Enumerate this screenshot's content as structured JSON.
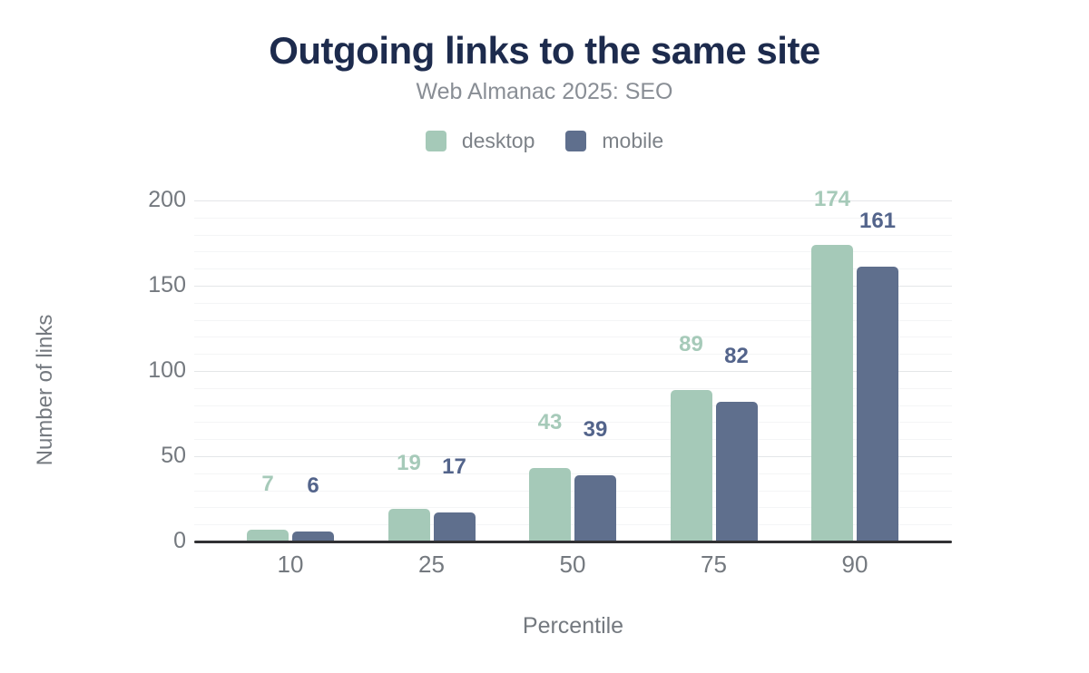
{
  "title": "Outgoing links to the same site",
  "subtitle": "Web Almanac 2025: SEO",
  "legend": [
    {
      "label": "desktop",
      "color": "#a5c9b8"
    },
    {
      "label": "mobile",
      "color": "#5f6f8d"
    }
  ],
  "chart_data": {
    "type": "bar",
    "title": "Outgoing links to the same site",
    "subtitle": "Web Almanac 2025: SEO",
    "categories": [
      "10",
      "25",
      "50",
      "75",
      "90"
    ],
    "series": [
      {
        "name": "desktop",
        "values": [
          7,
          19,
          43,
          89,
          174
        ],
        "color": "#a5c9b8",
        "label_color": "#a6cab9"
      },
      {
        "name": "mobile",
        "values": [
          6,
          17,
          39,
          82,
          161
        ],
        "color": "#5f6f8d",
        "label_color": "#53648b"
      }
    ],
    "xlabel": "Percentile",
    "ylabel": "Number of links",
    "ylim": [
      0,
      200
    ],
    "yticks": [
      0,
      50,
      100,
      150,
      200
    ],
    "grid": {
      "major_step": 50,
      "minor_step": 10,
      "enabled": true
    },
    "legend_position": "top",
    "data_labels": true
  },
  "colors": {
    "title": "#1d2b4d",
    "subtitle": "#898e95",
    "tick_text": "#74797f",
    "axis_line": "#313134",
    "grid_major": "#e4e6e8",
    "grid_minor": "#f4f5f6",
    "background": "#ffffff"
  }
}
